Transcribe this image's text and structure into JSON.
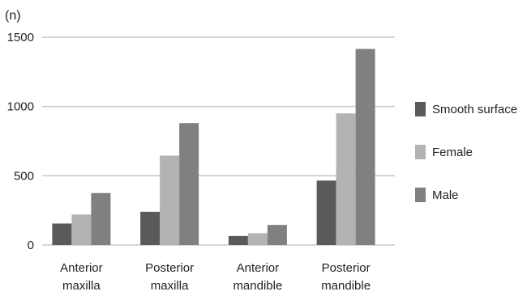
{
  "chart_data": {
    "type": "bar",
    "unit_label": "(n)",
    "categories": [
      [
        "Anterior",
        "maxilla"
      ],
      [
        "Posterior",
        "maxilla"
      ],
      [
        "Anterior",
        "mandible"
      ],
      [
        "Posterior",
        "mandible"
      ]
    ],
    "series": [
      {
        "name": "Smooth surface",
        "color": "#5a5a5a",
        "values": [
          155,
          240,
          65,
          465
        ]
      },
      {
        "name": "Female",
        "color": "#b3b3b3",
        "values": [
          220,
          645,
          85,
          950
        ]
      },
      {
        "name": "Male",
        "color": "#808080",
        "values": [
          375,
          880,
          145,
          1415
        ]
      }
    ],
    "yticks": [
      0,
      500,
      1000,
      1500
    ],
    "ylim": [
      0,
      1500
    ],
    "grid": true,
    "legend_position": "right"
  }
}
